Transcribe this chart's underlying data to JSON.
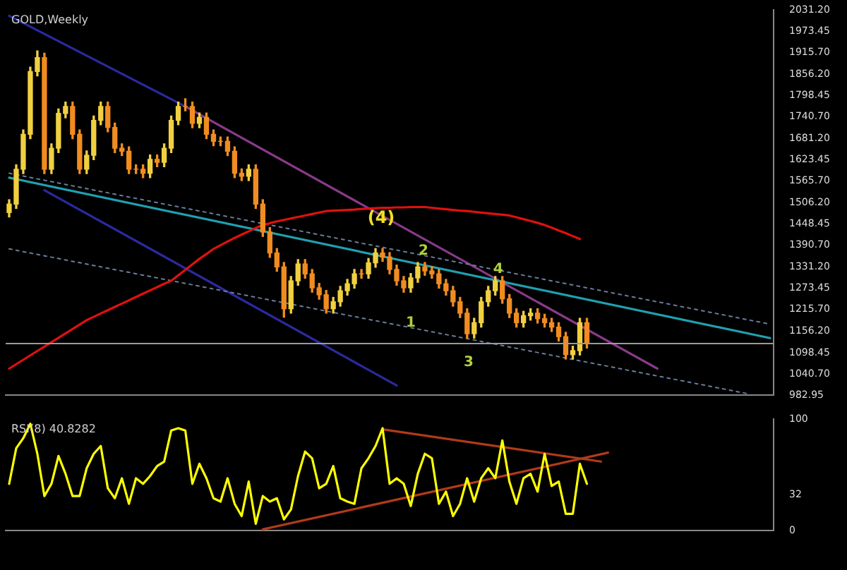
{
  "chart_data": [
    {
      "type": "candlestick",
      "title": "GOLD,Weekly",
      "categories": [
        null,
        null,
        null,
        null,
        null,
        null,
        null,
        null,
        null,
        null,
        null,
        null,
        null,
        null,
        null,
        null,
        null,
        null,
        null,
        null,
        null,
        null,
        null,
        null,
        null,
        null,
        null,
        null,
        null,
        null,
        null,
        null,
        null,
        null,
        null,
        null,
        null,
        null,
        null,
        null,
        null,
        null,
        null,
        null,
        null,
        null,
        null,
        null,
        null,
        null,
        null,
        null,
        null,
        null,
        null,
        null,
        null,
        null,
        null,
        null,
        null,
        null,
        null,
        null,
        null,
        null,
        null,
        null,
        null,
        null,
        null,
        null,
        null,
        null,
        null,
        null,
        null,
        null,
        null,
        null,
        null,
        null,
        null,
        null,
        null,
        null,
        null,
        null,
        null,
        null,
        null,
        null,
        null,
        null,
        null,
        null,
        null,
        null,
        null,
        null,
        null,
        null,
        null,
        null,
        null,
        null,
        null,
        null,
        null
      ],
      "colors": [
        "#f0d040",
        "#f0d040",
        "#f0d040",
        "#f0d040",
        "#f0d040",
        "#f08c20",
        "#f0d040",
        "#f0d040",
        "#f0d040",
        "#f08c20",
        "#f08c20",
        "#f0d040",
        "#f0d040",
        "#f0d040",
        "#f08c20",
        "#f08c20",
        "#f08c20",
        "#f08c20",
        "#f08c20",
        "#f08c20",
        "#f0d040",
        "#f08c20",
        "#f0d040",
        "#f0d040",
        "#f0d040",
        "#f08c20",
        "#f08c20",
        "#f0d040",
        "#f08c20",
        "#f08c20",
        "#f08c20",
        "#f08c20",
        "#f08c20",
        "#f08c20",
        "#f0d040",
        "#f08c20",
        "#f08c20",
        "#f08c20",
        "#f08c20",
        "#f08c20",
        "#f0d040",
        "#f0d040",
        "#f08c20",
        "#f08c20",
        "#f08c20",
        "#f08c20",
        "#f0d040",
        "#f0d040",
        "#f0d040",
        "#f0d040",
        "#f08c20",
        "#f0d040",
        "#f0d040",
        "#f08c20",
        "#f08c20",
        "#f08c20",
        "#f08c20",
        "#f0d040",
        "#f0d040",
        "#f08c20",
        "#f08c20",
        "#f08c20",
        "#f08c20",
        "#f08c20",
        "#f08c20",
        "#f08c20",
        "#f0d040",
        "#f0d040",
        "#f0d040",
        "#f0d040",
        "#f08c20",
        "#f08c20",
        "#f08c20",
        "#f0d040",
        "#f0d040",
        "#f08c20",
        "#f08c20",
        "#f08c20",
        "#f08c20",
        "#f08c20",
        "#f0d040",
        "#f0d040",
        "#f08c20",
        null,
        null,
        null,
        null,
        null,
        null,
        null,
        null,
        null,
        null,
        null,
        null,
        null,
        null,
        null,
        null,
        null,
        null,
        null,
        null,
        null,
        null,
        null,
        null,
        null,
        null
      ],
      "ohlc": [
        [
          1480,
          1515,
          1468,
          1503
        ],
        [
          1503,
          1610,
          1491,
          1598
        ],
        [
          1598,
          1705,
          1586,
          1693
        ],
        [
          1693,
          1876,
          1681,
          1864
        ],
        [
          1864,
          1920,
          1852,
          1902
        ],
        [
          1902,
          1914,
          1586,
          1598
        ],
        [
          1598,
          1667,
          1586,
          1655
        ],
        [
          1655,
          1762,
          1643,
          1750
        ],
        [
          1750,
          1781,
          1738,
          1769
        ],
        [
          1769,
          1781,
          1681,
          1693
        ],
        [
          1693,
          1705,
          1586,
          1598
        ],
        [
          1598,
          1648,
          1586,
          1636
        ],
        [
          1636,
          1743,
          1624,
          1731
        ],
        [
          1731,
          1781,
          1719,
          1769
        ],
        [
          1769,
          1781,
          1700,
          1712
        ],
        [
          1712,
          1724,
          1643,
          1655
        ],
        [
          1655,
          1667,
          1635,
          1647
        ],
        [
          1647,
          1659,
          1586,
          1598
        ],
        [
          1598,
          1610,
          1586,
          1598
        ],
        [
          1598,
          1610,
          1575,
          1587
        ],
        [
          1587,
          1637,
          1575,
          1625
        ],
        [
          1625,
          1637,
          1605,
          1617
        ],
        [
          1617,
          1667,
          1605,
          1655
        ],
        [
          1655,
          1743,
          1643,
          1731
        ],
        [
          1731,
          1781,
          1719,
          1769
        ],
        [
          1769,
          1790,
          1757,
          1769
        ],
        [
          1769,
          1781,
          1711,
          1723
        ],
        [
          1723,
          1751,
          1711,
          1739
        ],
        [
          1739,
          1751,
          1681,
          1693
        ],
        [
          1693,
          1705,
          1662,
          1674
        ],
        [
          1674,
          1686,
          1662,
          1674
        ],
        [
          1674,
          1686,
          1635,
          1647
        ],
        [
          1647,
          1659,
          1575,
          1587
        ],
        [
          1587,
          1599,
          1567,
          1579
        ],
        [
          1579,
          1610,
          1567,
          1598
        ],
        [
          1598,
          1610,
          1491,
          1503
        ],
        [
          1503,
          1515,
          1415,
          1427
        ],
        [
          1427,
          1439,
          1358,
          1370
        ],
        [
          1370,
          1382,
          1320,
          1332
        ],
        [
          1332,
          1344,
          1195,
          1218
        ],
        [
          1218,
          1306,
          1206,
          1294
        ],
        [
          1294,
          1352,
          1282,
          1340
        ],
        [
          1340,
          1352,
          1301,
          1313
        ],
        [
          1313,
          1325,
          1263,
          1275
        ],
        [
          1275,
          1287,
          1244,
          1256
        ],
        [
          1256,
          1268,
          1206,
          1218
        ],
        [
          1218,
          1249,
          1206,
          1237
        ],
        [
          1237,
          1279,
          1225,
          1267
        ],
        [
          1267,
          1298,
          1255,
          1286
        ],
        [
          1286,
          1325,
          1274,
          1313
        ],
        [
          1313,
          1325,
          1301,
          1313
        ],
        [
          1313,
          1355,
          1301,
          1343
        ],
        [
          1343,
          1382,
          1331,
          1370
        ],
        [
          1370,
          1382,
          1347,
          1359
        ],
        [
          1359,
          1371,
          1313,
          1325
        ],
        [
          1325,
          1337,
          1282,
          1294
        ],
        [
          1294,
          1306,
          1263,
          1275
        ],
        [
          1275,
          1314,
          1263,
          1302
        ],
        [
          1302,
          1344,
          1290,
          1332
        ],
        [
          1332,
          1344,
          1309,
          1321
        ],
        [
          1321,
          1333,
          1301,
          1313
        ],
        [
          1313,
          1325,
          1274,
          1286
        ],
        [
          1286,
          1298,
          1255,
          1267
        ],
        [
          1267,
          1279,
          1225,
          1237
        ],
        [
          1237,
          1249,
          1194,
          1206
        ],
        [
          1206,
          1218,
          1138,
          1150
        ],
        [
          1150,
          1192,
          1138,
          1180
        ],
        [
          1180,
          1249,
          1168,
          1237
        ],
        [
          1237,
          1279,
          1225,
          1267
        ],
        [
          1267,
          1306,
          1255,
          1294
        ],
        [
          1294,
          1306,
          1233,
          1245
        ],
        [
          1245,
          1257,
          1194,
          1206
        ],
        [
          1206,
          1218,
          1168,
          1180
        ],
        [
          1180,
          1211,
          1168,
          1199
        ],
        [
          1199,
          1218,
          1187,
          1206
        ],
        [
          1206,
          1218,
          1179,
          1191
        ],
        [
          1191,
          1203,
          1168,
          1180
        ],
        [
          1180,
          1192,
          1156,
          1168
        ],
        [
          1168,
          1180,
          1130,
          1142
        ],
        [
          1142,
          1154,
          1081,
          1093
        ],
        [
          1093,
          1116,
          1081,
          1104
        ],
        [
          1104,
          1192,
          1092,
          1180
        ],
        [
          1180,
          1192,
          1111,
          1123
        ],
        null,
        null,
        null,
        null,
        null,
        null,
        null,
        null,
        null,
        null,
        null,
        null,
        null,
        null,
        null,
        null,
        null,
        null,
        null,
        null,
        null,
        null,
        null,
        null,
        null,
        null
      ],
      "series": [
        {
          "type": "line",
          "color": "#e01010",
          "values": [
            1055,
            1067,
            1079,
            1091,
            1103,
            1115,
            1127,
            1139,
            1151,
            1163,
            1175,
            1187,
            1196,
            1205,
            1214,
            1223,
            1232,
            1241,
            1250,
            1259,
            1268,
            1277,
            1286,
            1294,
            1309,
            1324,
            1339,
            1354,
            1367,
            1381,
            1391,
            1401,
            1411,
            1420,
            1429,
            1438,
            1446,
            1451,
            1456,
            1460,
            1464,
            1468,
            1472,
            1476,
            1480,
            1484,
            1485,
            1486,
            1487,
            1488,
            1490,
            1491,
            1492,
            1493,
            1493,
            1494,
            1494,
            1495,
            1495,
            1495,
            1493,
            1491,
            1489,
            1487,
            1485,
            1484,
            1482,
            1480,
            1478,
            1476,
            1474,
            1472,
            1467,
            1462,
            1457,
            1452,
            1446,
            1439,
            1431,
            1424,
            1416,
            1408,
            null,
            null,
            null,
            null,
            null,
            null,
            null,
            null,
            null,
            null,
            null,
            null,
            null,
            null,
            null,
            null,
            null,
            null,
            null,
            null,
            null,
            null,
            null,
            null,
            null,
            null,
            null
          ]
        },
        {
          "type": "line",
          "color": "#1fa0b0",
          "values": [
            1575,
            null,
            null,
            null,
            null,
            null,
            null,
            null,
            null,
            null,
            null,
            null,
            null,
            null,
            null,
            null,
            null,
            null,
            null,
            null,
            null,
            null,
            null,
            null,
            null,
            null,
            null,
            null,
            null,
            null,
            null,
            null,
            null,
            null,
            null,
            null,
            null,
            null,
            null,
            null,
            null,
            null,
            null,
            null,
            null,
            null,
            null,
            null,
            null,
            null,
            null,
            null,
            null,
            null,
            null,
            null,
            null,
            null,
            null,
            null,
            null,
            null,
            null,
            null,
            null,
            null,
            null,
            null,
            null,
            null,
            null,
            null,
            null,
            null,
            null,
            null,
            null,
            null,
            null,
            null,
            null,
            null,
            null,
            null,
            null,
            null,
            null,
            null,
            null,
            null,
            null,
            null,
            null,
            null,
            null,
            null,
            null,
            null,
            null,
            null,
            null,
            null,
            null,
            null,
            null,
            null,
            null,
            null,
            1138
          ]
        },
        {
          "type": "line",
          "color": "#6a7d9a",
          "line_style": "dotted",
          "values": [
            1587,
            null,
            null,
            null,
            null,
            null,
            null,
            null,
            null,
            null,
            null,
            null,
            null,
            null,
            null,
            null,
            null,
            null,
            null,
            null,
            null,
            null,
            null,
            null,
            null,
            null,
            null,
            null,
            null,
            null,
            null,
            null,
            null,
            null,
            null,
            null,
            null,
            null,
            null,
            null,
            null,
            null,
            null,
            null,
            null,
            null,
            null,
            null,
            null,
            null,
            null,
            null,
            null,
            null,
            null,
            null,
            null,
            null,
            null,
            null,
            null,
            null,
            null,
            null,
            null,
            null,
            null,
            null,
            null,
            null,
            null,
            null,
            null,
            null,
            null,
            null,
            null,
            null,
            null,
            null,
            null,
            null,
            null,
            null,
            null,
            null,
            null,
            null,
            null,
            null,
            null,
            null,
            null,
            null,
            null,
            null,
            null,
            null,
            null,
            null,
            null,
            null,
            null,
            null,
            null,
            null,
            null,
            null,
            1176
          ]
        },
        {
          "type": "line",
          "color": "#6a7d9a",
          "line_style": "dotted",
          "values": [
            1381,
            null,
            null,
            null,
            null,
            null,
            null,
            null,
            null,
            null,
            null,
            null,
            null,
            null,
            null,
            null,
            null,
            null,
            null,
            null,
            null,
            null,
            null,
            null,
            null,
            null,
            null,
            null,
            null,
            null,
            null,
            null,
            null,
            null,
            null,
            null,
            null,
            null,
            null,
            null,
            null,
            null,
            null,
            null,
            null,
            null,
            null,
            null,
            null,
            null,
            null,
            null,
            null,
            null,
            null,
            null,
            null,
            null,
            null,
            null,
            null,
            null,
            null,
            null,
            null,
            null,
            null,
            null,
            null,
            null,
            null,
            null,
            null,
            null,
            null,
            null,
            null,
            null,
            null,
            null,
            null,
            null,
            null,
            null,
            null,
            null,
            null,
            null,
            null,
            null,
            null,
            null,
            null,
            null,
            null,
            null,
            null,
            null,
            null,
            null,
            null,
            null,
            null,
            null,
            null,
            986,
            null,
            null,
            null
          ]
        },
        {
          "type": "line",
          "color": "#8a3a8a",
          "values": [
            null,
            null,
            null,
            null,
            null,
            null,
            null,
            null,
            null,
            null,
            null,
            null,
            null,
            null,
            null,
            null,
            null,
            null,
            null,
            null,
            null,
            null,
            null,
            null,
            null,
            1769,
            null,
            null,
            null,
            null,
            null,
            null,
            null,
            null,
            null,
            null,
            null,
            null,
            null,
            null,
            null,
            null,
            null,
            null,
            null,
            null,
            null,
            null,
            null,
            null,
            null,
            null,
            null,
            null,
            null,
            null,
            null,
            null,
            null,
            null,
            null,
            null,
            null,
            null,
            null,
            null,
            null,
            null,
            null,
            null,
            null,
            null,
            null,
            null,
            null,
            null,
            null,
            null,
            null,
            null,
            null,
            null,
            null,
            null,
            null,
            null,
            null,
            null,
            null,
            null,
            null,
            null,
            1055,
            null,
            null,
            null,
            null,
            null,
            null,
            null,
            null,
            null,
            null,
            null,
            null,
            null,
            null,
            null,
            null
          ]
        },
        {
          "type": "line",
          "color": "#2a2aa0",
          "values": [
            2016,
            null,
            null,
            null,
            null,
            null,
            null,
            null,
            null,
            null,
            null,
            null,
            null,
            null,
            null,
            null,
            null,
            null,
            null,
            null,
            null,
            null,
            null,
            null,
            null,
            1769,
            null,
            null,
            null,
            null,
            null,
            null,
            null,
            null,
            null,
            null,
            null,
            null,
            null,
            null,
            null,
            null,
            null,
            null,
            null,
            null,
            null,
            null,
            null,
            null,
            null,
            null,
            null,
            null,
            null,
            null,
            null,
            null,
            null,
            null,
            null,
            null,
            null,
            null,
            null,
            null,
            null,
            null,
            null,
            null,
            null,
            null,
            null,
            null,
            null,
            null,
            null,
            null,
            null,
            null,
            null,
            null,
            null,
            null,
            null,
            null,
            null,
            null,
            null,
            null,
            null,
            null,
            null,
            null,
            null,
            null,
            null,
            null,
            null,
            null,
            null,
            null,
            null,
            null,
            null,
            null,
            null,
            null,
            null
          ]
        },
        {
          "type": "line",
          "color": "#2a2aa0",
          "values": [
            null,
            null,
            null,
            null,
            null,
            1541,
            null,
            null,
            null,
            null,
            null,
            null,
            null,
            null,
            null,
            null,
            null,
            null,
            null,
            null,
            null,
            null,
            null,
            null,
            null,
            null,
            null,
            null,
            null,
            null,
            null,
            null,
            null,
            null,
            null,
            null,
            null,
            null,
            null,
            null,
            null,
            null,
            null,
            null,
            null,
            null,
            null,
            null,
            null,
            null,
            null,
            null,
            null,
            null,
            null,
            1009,
            null,
            null,
            null,
            null,
            null,
            null,
            null,
            null,
            null,
            null,
            null,
            null,
            null,
            null,
            null,
            null,
            null,
            null,
            null,
            null,
            null,
            null,
            null,
            null,
            null,
            null,
            null,
            null,
            null,
            null,
            null,
            null,
            null,
            null,
            null,
            null,
            null,
            null,
            null,
            null,
            null,
            null,
            null,
            null,
            null,
            null,
            null,
            null,
            null,
            null,
            null,
            null,
            null
          ]
        }
      ],
      "marker": "none",
      "ylim": [
        982.95,
        2031.2
      ],
      "yticks": [
        {
          "value": 2031.2,
          "label": "2031.20"
        },
        {
          "value": 1973.45,
          "label": "1973.45"
        },
        {
          "value": 1915.7,
          "label": "1915.70"
        },
        {
          "value": 1856.2,
          "label": "1856.20"
        },
        {
          "value": 1798.45,
          "label": "1798.45"
        },
        {
          "value": 1740.7,
          "label": "1740.70"
        },
        {
          "value": 1681.2,
          "label": "1681.20"
        },
        {
          "value": 1623.45,
          "label": "1623.45"
        },
        {
          "value": 1565.7,
          "label": "1565.70"
        },
        {
          "value": 1506.2,
          "label": "1506.20"
        },
        {
          "value": 1448.45,
          "label": "1448.45"
        },
        {
          "value": 1390.7,
          "label": "1390.70"
        },
        {
          "value": 1331.2,
          "label": "1331.20"
        },
        {
          "value": 1273.45,
          "label": "1273.45"
        },
        {
          "value": 1215.7,
          "label": "1215.70"
        },
        {
          "value": 1156.2,
          "label": "1156.20"
        },
        {
          "value": 1098.45,
          "label": "1098.45"
        },
        {
          "value": 1040.7,
          "label": "1040.70"
        },
        {
          "value": 982.95,
          "label": "982.95"
        }
      ],
      "ref_lines": [
        {
          "axis": "y",
          "value": 1123,
          "color": "#9a9a9a"
        }
      ],
      "annotations": [
        "(4)",
        "2",
        "4",
        "1",
        "3"
      ],
      "tick_labels": "y",
      "legend": false,
      "grid": false
    },
    {
      "type": "line",
      "title": "RSI(8) 40.8282",
      "categories": [
        null,
        null,
        null,
        null,
        null,
        null,
        null,
        null,
        null,
        null,
        null,
        null,
        null,
        null,
        null,
        null,
        null,
        null,
        null,
        null,
        null,
        null,
        null,
        null,
        null,
        null,
        null,
        null,
        null,
        null,
        null,
        null,
        null,
        null,
        null,
        null,
        null,
        null,
        null,
        null,
        null,
        null,
        null,
        null,
        null,
        null,
        null,
        null,
        null,
        null,
        null,
        null,
        null,
        null,
        null,
        null,
        null,
        null,
        null,
        null,
        null,
        null,
        null,
        null,
        null,
        null,
        null,
        null,
        null,
        null,
        null,
        null,
        null,
        null,
        null,
        null,
        null,
        null,
        null,
        null,
        null,
        null,
        null,
        null,
        null,
        null,
        null,
        null,
        null,
        null,
        null,
        null,
        null,
        null,
        null,
        null,
        null,
        null,
        null,
        null,
        null,
        null,
        null,
        null,
        null,
        null,
        null,
        null,
        null
      ],
      "series": [
        {
          "color": "#ffff00",
          "values": [
            42,
            74,
            83,
            96,
            69,
            31,
            42,
            67,
            51,
            31,
            31,
            56,
            69,
            76,
            38,
            29,
            47,
            24,
            47,
            42,
            49,
            58,
            62,
            90,
            92,
            90,
            42,
            60,
            47,
            29,
            26,
            47,
            24,
            13,
            44,
            6,
            31,
            26,
            29,
            10,
            19,
            49,
            71,
            65,
            38,
            42,
            58,
            29,
            26,
            24,
            56,
            65,
            76,
            92,
            42,
            47,
            42,
            22,
            51,
            69,
            65,
            24,
            35,
            13,
            24,
            47,
            26,
            47,
            56,
            47,
            81,
            44,
            24,
            47,
            51,
            35,
            69,
            40,
            44,
            15,
            15,
            60,
            42,
            null,
            null,
            null,
            null,
            null,
            null,
            null,
            null,
            null,
            null,
            null,
            null,
            null,
            null,
            null,
            null,
            null,
            null,
            null,
            null,
            null,
            null,
            null,
            null,
            null,
            null
          ]
        },
        {
          "color": "#b03a1a",
          "values": [
            null,
            null,
            null,
            null,
            null,
            null,
            null,
            null,
            null,
            null,
            null,
            null,
            null,
            null,
            null,
            null,
            null,
            null,
            null,
            null,
            null,
            null,
            null,
            null,
            null,
            null,
            null,
            null,
            null,
            null,
            null,
            null,
            null,
            null,
            null,
            null,
            null,
            null,
            null,
            null,
            null,
            null,
            null,
            null,
            null,
            null,
            null,
            null,
            null,
            null,
            null,
            null,
            null,
            91,
            null,
            null,
            null,
            null,
            null,
            null,
            null,
            null,
            null,
            null,
            null,
            null,
            null,
            null,
            null,
            null,
            null,
            null,
            null,
            null,
            null,
            null,
            null,
            null,
            null,
            null,
            null,
            null,
            null,
            null,
            62,
            null,
            null,
            null,
            null,
            null,
            null,
            null,
            null,
            null,
            null,
            null,
            null,
            null,
            null,
            null,
            null,
            null,
            null,
            null,
            null,
            null,
            null,
            null,
            null
          ]
        },
        {
          "color": "#b03a1a",
          "values": [
            null,
            null,
            null,
            null,
            null,
            null,
            null,
            null,
            null,
            null,
            null,
            null,
            null,
            null,
            null,
            null,
            null,
            null,
            null,
            null,
            null,
            null,
            null,
            null,
            null,
            null,
            null,
            null,
            null,
            null,
            null,
            null,
            null,
            null,
            null,
            null,
            1,
            null,
            null,
            null,
            null,
            null,
            null,
            null,
            null,
            null,
            null,
            null,
            null,
            null,
            null,
            null,
            null,
            null,
            null,
            null,
            null,
            null,
            null,
            null,
            null,
            null,
            null,
            null,
            null,
            null,
            null,
            null,
            null,
            null,
            null,
            null,
            null,
            null,
            null,
            null,
            null,
            null,
            null,
            null,
            null,
            null,
            null,
            null,
            null,
            70,
            null,
            null,
            null,
            null,
            null,
            null,
            null,
            null,
            null,
            null,
            null,
            null,
            null,
            null,
            null,
            null,
            null,
            null,
            null,
            null,
            null,
            null,
            null
          ]
        }
      ],
      "marker": "none",
      "ylim": [
        0,
        100
      ],
      "yticks": [
        100,
        32,
        0
      ],
      "tick_labels": "y",
      "legend": false,
      "grid": false
    }
  ]
}
